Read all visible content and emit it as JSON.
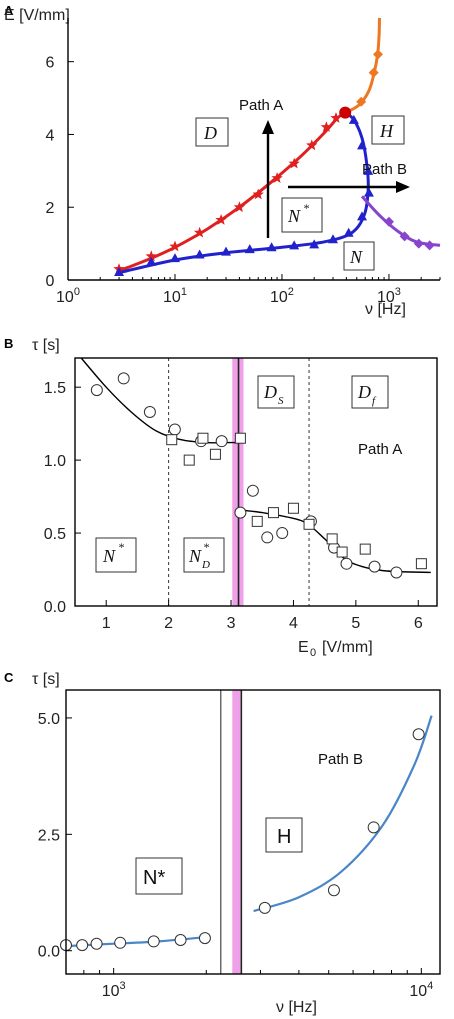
{
  "panel_labels": [
    "A",
    "B",
    "C"
  ],
  "chart_data": [
    {
      "type": "line",
      "panel": "A",
      "xlabel": "ν [Hz]",
      "ylabel": "E [V/mm]",
      "xscale": "log",
      "xlim": [
        1,
        3000
      ],
      "ylim": [
        0,
        7.2
      ],
      "xticks": [
        {
          "v": 1,
          "base": "10",
          "exp": "0"
        },
        {
          "v": 10,
          "base": "10",
          "exp": "1"
        },
        {
          "v": 100,
          "base": "10",
          "exp": "2"
        },
        {
          "v": 1000,
          "base": "10",
          "exp": "3"
        }
      ],
      "yticks": [
        0,
        2,
        4,
        6
      ],
      "series": [
        {
          "key": "D-boundary",
          "color": "#e02020",
          "marker": "star",
          "x": [
            3,
            6,
            10,
            17,
            27,
            40,
            60,
            90,
            130,
            190,
            260,
            320,
            390
          ],
          "y": [
            0.3,
            0.65,
            0.92,
            1.3,
            1.65,
            2.0,
            2.35,
            2.8,
            3.2,
            3.7,
            4.2,
            4.45,
            4.6
          ],
          "curve_x": [
            3,
            6,
            10,
            20,
            40,
            80,
            150,
            250,
            330,
            390
          ],
          "curve_y": [
            0.25,
            0.6,
            0.9,
            1.4,
            2.0,
            2.7,
            3.4,
            4.05,
            4.45,
            4.6
          ]
        },
        {
          "key": "N-boundary",
          "color": "#2222cc",
          "marker": "triangle",
          "x": [
            3,
            6,
            10,
            17,
            30,
            50,
            80,
            130,
            200,
            300,
            420,
            560,
            650,
            640,
            560,
            470
          ],
          "y": [
            0.22,
            0.5,
            0.6,
            0.7,
            0.78,
            0.85,
            0.9,
            0.95,
            0.98,
            1.12,
            1.3,
            1.75,
            2.4,
            3.0,
            3.7,
            4.4
          ],
          "curve_x": [
            3,
            10,
            30,
            100,
            250,
            450,
            590,
            640,
            620,
            560,
            470,
            390
          ],
          "curve_y": [
            0.2,
            0.55,
            0.75,
            0.9,
            1.05,
            1.3,
            1.8,
            2.5,
            3.2,
            3.9,
            4.4,
            4.6
          ]
        },
        {
          "key": "H-boundary",
          "color": "#ee7722",
          "marker": "diamond",
          "x": [
            550,
            720,
            790
          ],
          "y": [
            4.9,
            5.7,
            6.2
          ],
          "curve_x": [
            390,
            520,
            650,
            740,
            790,
            810,
            815
          ],
          "curve_y": [
            4.6,
            4.8,
            5.2,
            5.8,
            6.3,
            6.8,
            7.2
          ]
        },
        {
          "key": "high-freq",
          "color": "#8844cc",
          "marker": "diamond",
          "x": [
            1000,
            1400,
            1900,
            2400
          ],
          "y": [
            1.6,
            1.2,
            1.0,
            0.95
          ],
          "curve_x": [
            560,
            800,
            1200,
            1800,
            3000
          ],
          "curve_y": [
            2.3,
            1.8,
            1.35,
            1.05,
            0.95
          ]
        }
      ],
      "triple_point": {
        "x": 390,
        "y": 4.6,
        "color": "#cc0000"
      },
      "annotations": {
        "path_a": "Path A",
        "path_b": "Path B"
      },
      "regions": {
        "D": "D",
        "H": "H",
        "N_star": "N",
        "N_star_sup": "*",
        "N": "N"
      }
    },
    {
      "type": "scatter",
      "panel": "B",
      "xlabel": "E",
      "xlabel_sub": "0",
      "xlabel_unit": "[V/mm]",
      "ylabel": "τ [s]",
      "xlim": [
        0.5,
        6.3
      ],
      "ylim": [
        0,
        1.7
      ],
      "xticks": [
        1,
        2,
        3,
        4,
        5,
        6
      ],
      "yticks": [
        "0.0",
        "0.5",
        "1.0",
        "1.5"
      ],
      "series": [
        {
          "key": "circles",
          "marker": "circle",
          "x": [
            0.85,
            1.28,
            1.7,
            2.1,
            2.52,
            2.85,
            3.15,
            3.35,
            3.58,
            3.82,
            4.28,
            4.65,
            4.85,
            5.3,
            5.65
          ],
          "y": [
            1.48,
            1.56,
            1.33,
            1.21,
            1.13,
            1.13,
            0.64,
            0.79,
            0.47,
            0.5,
            0.58,
            0.4,
            0.29,
            0.27,
            0.23
          ]
        },
        {
          "key": "squares",
          "marker": "square",
          "x": [
            2.05,
            2.33,
            2.55,
            2.75,
            3.15,
            3.42,
            3.68,
            4.0,
            4.25,
            4.62,
            4.78,
            5.15,
            6.05
          ],
          "y": [
            1.14,
            1.0,
            1.15,
            1.04,
            1.15,
            0.58,
            0.64,
            0.67,
            0.56,
            0.46,
            0.37,
            0.39,
            0.29
          ]
        }
      ],
      "fit": {
        "x": [
          0.6,
          1.0,
          1.4,
          1.8,
          2.2,
          2.6,
          2.9,
          3.12,
          3.12,
          3.5,
          3.9,
          4.2,
          4.5,
          4.8,
          5.1,
          5.5,
          6.2
        ],
        "y": [
          1.7,
          1.5,
          1.33,
          1.2,
          1.14,
          1.12,
          1.12,
          1.12,
          0.66,
          0.64,
          0.61,
          0.57,
          0.46,
          0.33,
          0.27,
          0.24,
          0.23
        ]
      },
      "dashed_lines_x": [
        2.0,
        4.25
      ],
      "transition_x": 3.12,
      "band": {
        "x0": 3.02,
        "x1": 3.2,
        "color": "#f0a0e8"
      },
      "regions": {
        "N_star": "N",
        "N_star_sup": "*",
        "ND": "N",
        "ND_sub": "D",
        "ND_sup": "*",
        "Ds": "D",
        "Ds_sub": "S",
        "Df": "D",
        "Df_sub": "f"
      },
      "annotation": "Path A"
    },
    {
      "type": "scatter",
      "panel": "C",
      "xlabel": "ν [Hz]",
      "ylabel": "τ [s]",
      "xscale": "log",
      "xlim": [
        700,
        11500
      ],
      "ylim": [
        -0.5,
        5.6
      ],
      "xticks": [
        {
          "v": 1000,
          "base": "10",
          "exp": "3"
        },
        {
          "v": 10000,
          "base": "10",
          "exp": "4"
        }
      ],
      "yticks": [
        "0.0",
        "2.5",
        "5.0"
      ],
      "series": [
        {
          "key": "low",
          "marker": "circle",
          "x": [
            700,
            790,
            880,
            1050,
            1350,
            1650,
            1980
          ],
          "y": [
            0.12,
            0.12,
            0.15,
            0.17,
            0.2,
            0.23,
            0.27
          ]
        },
        {
          "key": "high",
          "marker": "circle",
          "x": [
            3100,
            5200,
            7000,
            9800
          ],
          "y": [
            0.92,
            1.3,
            2.65,
            4.65
          ]
        }
      ],
      "fit_low": {
        "x": [
          700,
          1000,
          1400,
          2050
        ],
        "y": [
          0.1,
          0.15,
          0.2,
          0.3
        ]
      },
      "fit_high": {
        "x": [
          2850,
          4000,
          5500,
          7500,
          9500,
          10800
        ],
        "y": [
          0.85,
          1.15,
          1.7,
          2.7,
          4.0,
          5.05
        ]
      },
      "transition_x": 2600,
      "band": {
        "x0": 2430,
        "x1": 2580,
        "color": "#f0a0e8"
      },
      "regions": {
        "N_star": "N*",
        "H": "H"
      },
      "annotation": "Path B"
    }
  ]
}
